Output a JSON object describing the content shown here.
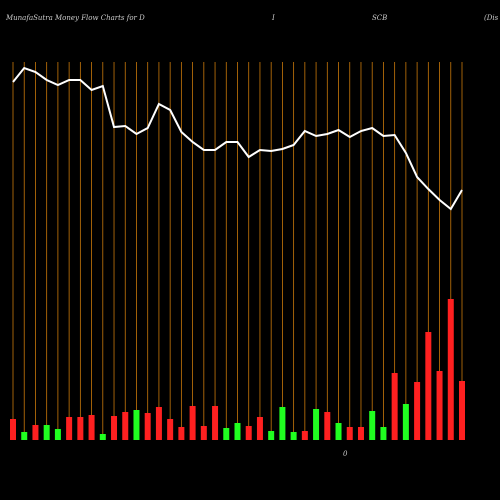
{
  "chart_data": {
    "type": "bar-line",
    "title_parts": [
      "MunafaSutra  Money Flow  Charts for D",
      "I",
      "SCB",
      "(Dis"
    ],
    "annotation": "0",
    "categories": [
      null,
      null,
      null,
      null,
      null,
      null,
      null,
      null,
      null,
      null,
      null,
      null,
      null,
      null,
      null,
      null,
      null,
      null,
      null,
      null,
      null,
      null,
      null,
      null,
      null,
      null,
      null,
      null,
      null,
      null,
      null,
      null,
      null,
      null,
      null,
      null,
      null,
      null,
      null,
      null,
      null
    ],
    "price": [
      358,
      372,
      368,
      360,
      355,
      360,
      360,
      350,
      354,
      313,
      314,
      306,
      312,
      336,
      330,
      308,
      298,
      290,
      290,
      298,
      298,
      283,
      290,
      289,
      291,
      295,
      309,
      304,
      306,
      310,
      303,
      309,
      312,
      304,
      305,
      287,
      263,
      251,
      240,
      231,
      250
    ],
    "volume": [
      21,
      8,
      15,
      15,
      11,
      23,
      23,
      25,
      6,
      24,
      28,
      30,
      27,
      33,
      21,
      13,
      34,
      14,
      34,
      12,
      17,
      14,
      23,
      9,
      33,
      8,
      9,
      31,
      28,
      17,
      13,
      13,
      29,
      13,
      67,
      36,
      58,
      108,
      69,
      141,
      59
    ],
    "bar_colors": [
      "#ff2020",
      "#20ff20",
      "#ff2020",
      "#20ff20",
      "#20ff20",
      "#ff2020",
      "#ff2020",
      "#ff2020",
      "#20ff20",
      "#ff2020",
      "#ff2020",
      "#20ff20",
      "#ff2020",
      "#ff2020",
      "#ff2020",
      "#ff2020",
      "#ff2020",
      "#ff2020",
      "#ff2020",
      "#20ff20",
      "#20ff20",
      "#ff2020",
      "#ff2020",
      "#20ff20",
      "#20ff20",
      "#20ff20",
      "#ff2020",
      "#20ff20",
      "#ff2020",
      "#20ff20",
      "#ff2020",
      "#ff2020",
      "#20ff20",
      "#20ff20",
      "#ff2020",
      "#20ff20",
      "#ff2020",
      "#ff2020",
      "#ff2020",
      "#ff2020",
      "#ff2020"
    ],
    "line_color": "#ffffff",
    "grid_color": "#c8780a",
    "ylim": [
      0,
      400
    ]
  }
}
